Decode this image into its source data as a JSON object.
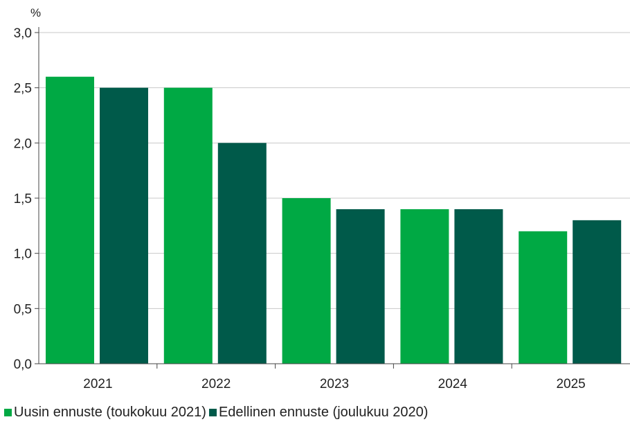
{
  "chart_data": {
    "type": "bar",
    "unit_label": "%",
    "categories": [
      "2021",
      "2022",
      "2023",
      "2024",
      "2025"
    ],
    "series": [
      {
        "name": "Uusin ennuste (toukokuu 2021)",
        "color": "#00a944",
        "values": [
          2.6,
          2.5,
          1.5,
          1.4,
          1.2
        ]
      },
      {
        "name": "Edellinen ennuste (joulukuu 2020)",
        "color": "#005a4a",
        "values": [
          2.5,
          2.0,
          1.4,
          1.4,
          1.3
        ]
      }
    ],
    "ylim": [
      0,
      3.0
    ],
    "yticks": [
      "0,0",
      "0,5",
      "1,0",
      "1,5",
      "2,0",
      "2,5",
      "3,0"
    ],
    "grid": true,
    "legend_position": "bottom-left"
  }
}
